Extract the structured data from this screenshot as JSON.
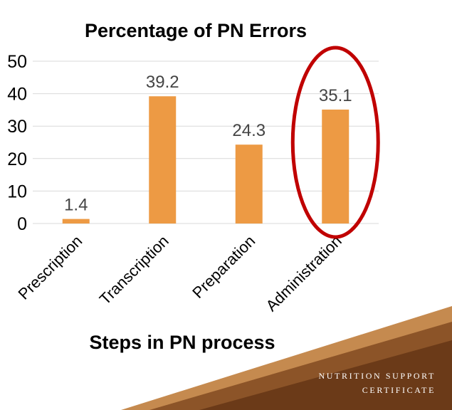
{
  "chart_data": {
    "type": "bar",
    "title": "Percentage of PN Errors",
    "xlabel": "Steps in PN process",
    "ylabel": "",
    "categories": [
      "Prescription",
      "Transcription",
      "Preparation",
      "Administration"
    ],
    "values": [
      1.4,
      39.2,
      24.3,
      35.1
    ],
    "data_labels": [
      "1.4",
      "39.2",
      "24.3",
      "35.1"
    ],
    "ylim": [
      0,
      50
    ],
    "yticks": [
      0,
      10,
      20,
      30,
      40,
      50
    ],
    "grid": true,
    "legend": "none",
    "highlighted_category": "Administration",
    "bar_color": "#ED9A44",
    "highlight_color": "#C00000"
  },
  "footer": {
    "line1": "NUTRITION SUPPORT",
    "line2": "CERTIFICATE"
  },
  "colors": {
    "corner_dark": "#6B3A18",
    "corner_mid": "#8C5428",
    "corner_light": "#C58A4F"
  }
}
